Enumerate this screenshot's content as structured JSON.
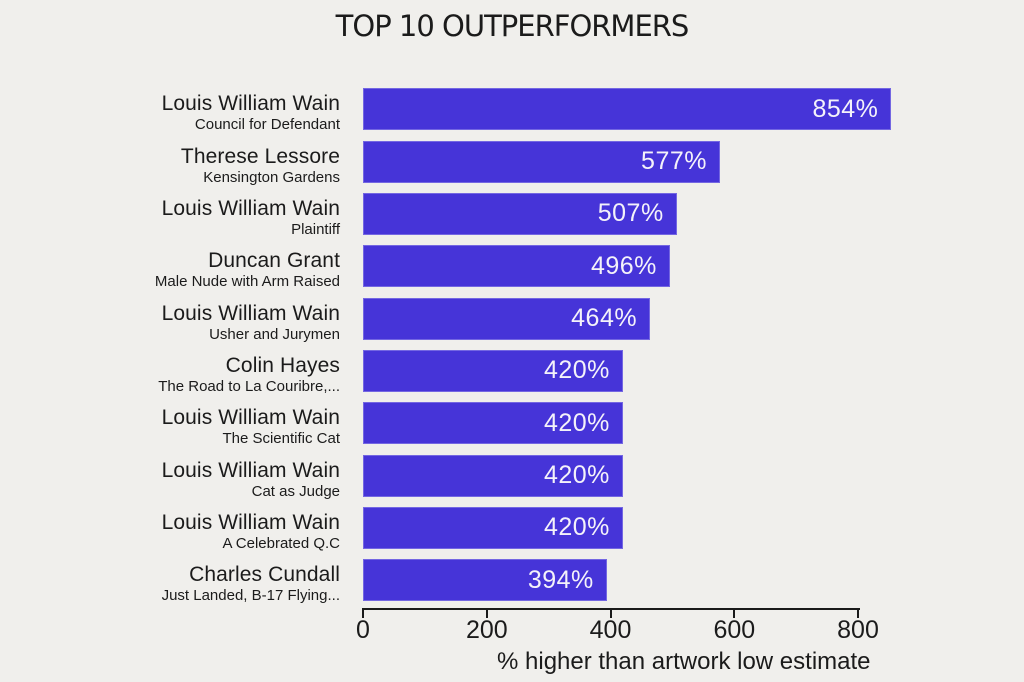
{
  "title": "TOP 10 OUTPERFORMERS",
  "chart_data": {
    "type": "bar",
    "orientation": "horizontal",
    "title": "TOP 10 OUTPERFORMERS",
    "xlabel": "% higher than artwork low estimate",
    "xticks": [
      0,
      200,
      400,
      600,
      800
    ],
    "xlim": [
      0,
      860
    ],
    "grid": false,
    "legend": false,
    "categories": [
      "Louis William Wain — Council for Defendant",
      "Therese Lessore — Kensington Gardens",
      "Louis William Wain — Plaintiff",
      "Duncan Grant — Male Nude with Arm Raised",
      "Louis William Wain — Usher and Jurymen",
      "Colin Hayes — The Road to La Couribre,...",
      "Louis William Wain — The Scientific Cat",
      "Louis William Wain — Cat as Judge",
      "Louis William Wain — A Celebrated Q.C",
      "Charles Cundall — Just Landed, B-17 Flying..."
    ],
    "values": [
      854,
      577,
      507,
      496,
      464,
      420,
      420,
      420,
      420,
      394
    ],
    "bars": [
      {
        "artist": "Louis William Wain",
        "artwork": "Council for Defendant",
        "value": 854,
        "label": "854%"
      },
      {
        "artist": "Therese Lessore",
        "artwork": "Kensington Gardens",
        "value": 577,
        "label": "577%"
      },
      {
        "artist": "Louis William Wain",
        "artwork": "Plaintiff",
        "value": 507,
        "label": "507%"
      },
      {
        "artist": "Duncan Grant",
        "artwork": "Male Nude with Arm Raised",
        "value": 496,
        "label": "496%"
      },
      {
        "artist": "Louis William Wain",
        "artwork": "Usher and Jurymen",
        "value": 464,
        "label": "464%"
      },
      {
        "artist": "Colin Hayes",
        "artwork": "The Road to La Couribre,...",
        "value": 420,
        "label": "420%"
      },
      {
        "artist": "Louis William Wain",
        "artwork": "The Scientific Cat",
        "value": 420,
        "label": "420%"
      },
      {
        "artist": "Louis William Wain",
        "artwork": "Cat as Judge",
        "value": 420,
        "label": "420%"
      },
      {
        "artist": "Louis William Wain",
        "artwork": "A Celebrated Q.C",
        "value": 420,
        "label": "420%"
      },
      {
        "artist": "Charles Cundall",
        "artwork": "Just Landed, B-17 Flying...",
        "value": 394,
        "label": "394%"
      }
    ],
    "colors": {
      "bar": "#4634d8",
      "value_text": "#f4f2fa",
      "background": "#f0efec",
      "text": "#1b1b1b",
      "axis": "#1a1a1a"
    }
  }
}
